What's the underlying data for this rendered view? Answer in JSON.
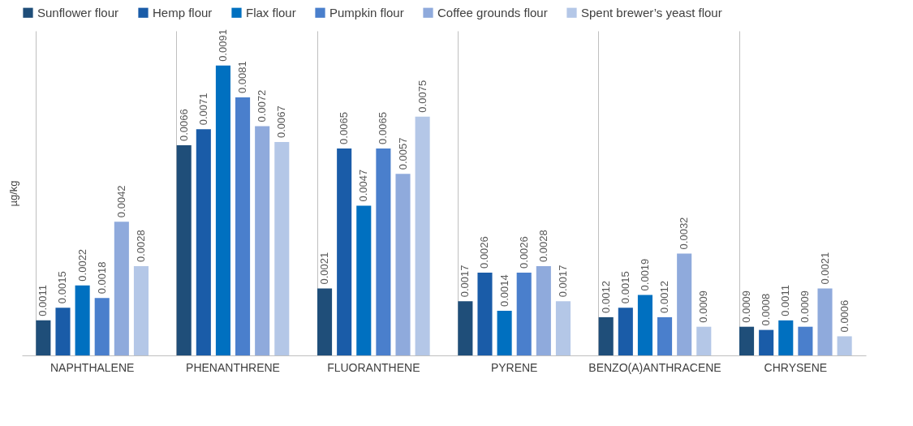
{
  "chart_data": {
    "type": "bar",
    "ylabel": "µg/kg",
    "categories": [
      "NAPHTHALENE",
      "PHENANTHRENE",
      "FLUORANTHENE",
      "PYRENE",
      "BENZO(A)ANTHRACENE",
      "CHRYSENE"
    ],
    "series": [
      {
        "name": "Sunflower flour",
        "color": "#1f4e79",
        "values": [
          0.0011,
          0.0066,
          0.0021,
          0.0017,
          0.0012,
          0.0009
        ]
      },
      {
        "name": "Hemp flour",
        "color": "#1a5ca8",
        "values": [
          0.0015,
          0.0071,
          0.0065,
          0.0026,
          0.0015,
          0.0008
        ]
      },
      {
        "name": "Flax flour",
        "color": "#0070c0",
        "values": [
          0.0022,
          0.0091,
          0.0047,
          0.0014,
          0.0019,
          0.0011
        ]
      },
      {
        "name": "Pumpkin flour",
        "color": "#4a7fcc",
        "values": [
          0.0018,
          0.0081,
          0.0065,
          0.0026,
          0.0012,
          0.0009
        ]
      },
      {
        "name": "Coffee grounds flour",
        "color": "#8faadc",
        "values": [
          0.0042,
          0.0072,
          0.0057,
          0.0028,
          0.0032,
          0.0021
        ]
      },
      {
        "name": "Spent brewer’s yeast flour",
        "color": "#b4c7e7",
        "values": [
          0.0028,
          0.0067,
          0.0075,
          0.0017,
          0.0009,
          0.0006
        ]
      }
    ],
    "data_labels": true,
    "grid": "x",
    "legend": "top",
    "tick_labels": "x"
  }
}
